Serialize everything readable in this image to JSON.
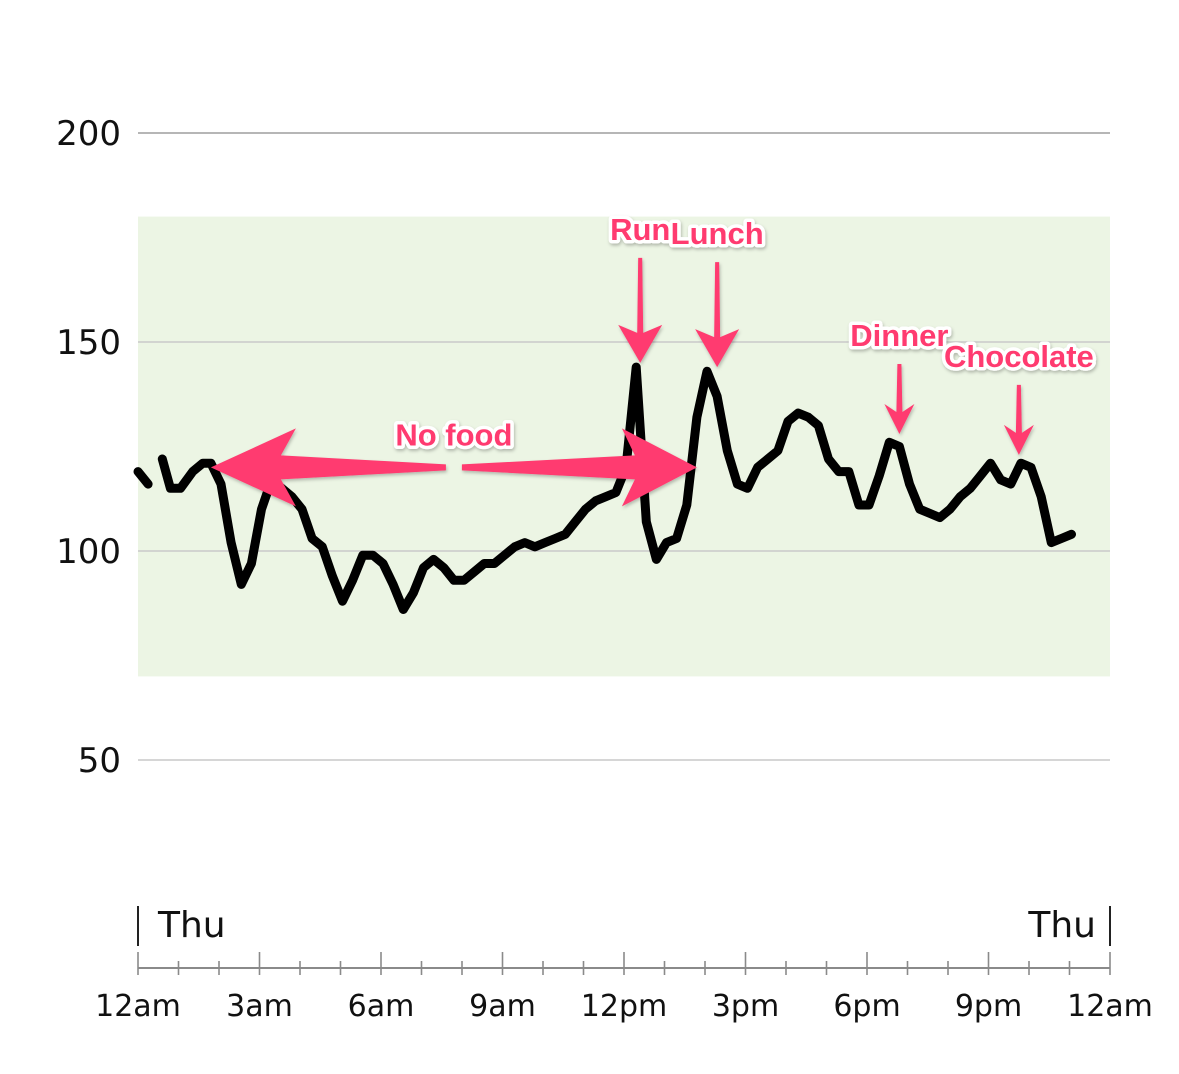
{
  "chart_data": {
    "type": "line",
    "title": "",
    "xlabel": "",
    "ylabel": "",
    "ylim": [
      0,
      220
    ],
    "xlim": [
      0,
      24
    ],
    "yticks": [
      50,
      100,
      150,
      200
    ],
    "y_tick_labels": [
      "50",
      "100",
      "150",
      "200"
    ],
    "x_major_ticks": [
      0,
      3,
      6,
      9,
      12,
      15,
      18,
      21,
      24
    ],
    "x_tick_labels": [
      "12am",
      "3am",
      "6am",
      "9am",
      "12pm",
      "3pm",
      "6pm",
      "9pm",
      "12am"
    ],
    "x_minor_step_hours": 1,
    "day_labels": [
      {
        "text": "Thu",
        "x": 0
      },
      {
        "text": "Thu",
        "x": 24
      }
    ],
    "target_range": {
      "low": 70,
      "high": 180
    },
    "grid": "horizontal",
    "legend": "none",
    "series": [
      {
        "name": "",
        "segments": [
          [
            [
              0.0,
              119
            ],
            [
              0.25,
              116
            ]
          ],
          [
            [
              0.6,
              122
            ],
            [
              0.8,
              115
            ],
            [
              1.05,
              115
            ],
            [
              1.35,
              119
            ],
            [
              1.6,
              121
            ],
            [
              1.8,
              121
            ],
            [
              2.05,
              116
            ],
            [
              2.3,
              102
            ],
            [
              2.55,
              92
            ],
            [
              2.8,
              97
            ],
            [
              3.05,
              110
            ],
            [
              3.3,
              117
            ],
            [
              3.55,
              115
            ],
            [
              3.8,
              113
            ],
            [
              4.05,
              110
            ],
            [
              4.3,
              103
            ],
            [
              4.55,
              101
            ],
            [
              4.8,
              94
            ],
            [
              5.05,
              88
            ],
            [
              5.3,
              93
            ],
            [
              5.55,
              99
            ],
            [
              5.8,
              99
            ],
            [
              6.05,
              97
            ],
            [
              6.3,
              92
            ],
            [
              6.55,
              86
            ],
            [
              6.8,
              90
            ],
            [
              7.05,
              96
            ],
            [
              7.3,
              98
            ],
            [
              7.55,
              96
            ],
            [
              7.8,
              93
            ],
            [
              8.05,
              93
            ],
            [
              8.3,
              95
            ],
            [
              8.55,
              97
            ],
            [
              8.8,
              97
            ],
            [
              9.05,
              99
            ],
            [
              9.3,
              101
            ],
            [
              9.55,
              102
            ],
            [
              9.8,
              101
            ],
            [
              10.05,
              102
            ],
            [
              10.3,
              103
            ],
            [
              10.55,
              104
            ],
            [
              10.8,
              107
            ],
            [
              11.05,
              110
            ],
            [
              11.3,
              112
            ],
            [
              11.55,
              113
            ],
            [
              11.8,
              114
            ],
            [
              12.05,
              120
            ],
            [
              12.3,
              144
            ],
            [
              12.55,
              107
            ],
            [
              12.8,
              98
            ],
            [
              13.05,
              102
            ],
            [
              13.3,
              103
            ],
            [
              13.55,
              111
            ],
            [
              13.8,
              132
            ],
            [
              14.05,
              143
            ],
            [
              14.3,
              137
            ],
            [
              14.55,
              124
            ],
            [
              14.8,
              116
            ],
            [
              15.05,
              115
            ],
            [
              15.3,
              120
            ],
            [
              15.55,
              122
            ],
            [
              15.8,
              124
            ],
            [
              16.05,
              131
            ],
            [
              16.3,
              133
            ],
            [
              16.55,
              132
            ],
            [
              16.8,
              130
            ],
            [
              17.05,
              122
            ],
            [
              17.3,
              119
            ],
            [
              17.55,
              119
            ],
            [
              17.8,
              111
            ],
            [
              18.05,
              111
            ],
            [
              18.3,
              118
            ],
            [
              18.55,
              126
            ],
            [
              18.8,
              125
            ],
            [
              19.05,
              116
            ],
            [
              19.3,
              110
            ],
            [
              19.55,
              109
            ],
            [
              19.8,
              108
            ],
            [
              20.05,
              110
            ],
            [
              20.3,
              113
            ],
            [
              20.55,
              115
            ],
            [
              20.8,
              118
            ],
            [
              21.05,
              121
            ],
            [
              21.3,
              117
            ],
            [
              21.55,
              116
            ],
            [
              21.8,
              121
            ],
            [
              22.05,
              120
            ],
            [
              22.3,
              113
            ],
            [
              22.55,
              102
            ],
            [
              22.8,
              103
            ],
            [
              23.05,
              104
            ]
          ]
        ]
      }
    ],
    "annotations": [
      {
        "text": "No food",
        "type": "double-arrow",
        "x_from": 1.8,
        "x_to": 13.8,
        "y": 120
      },
      {
        "text": "Run",
        "type": "down-arrow",
        "x": 12.4,
        "y": 145
      },
      {
        "text": "Lunch",
        "type": "down-arrow",
        "x": 14.3,
        "y": 144
      },
      {
        "text": "Dinner",
        "type": "down-arrow",
        "x": 18.8,
        "y": 128
      },
      {
        "text": "Chocolate",
        "type": "down-arrow",
        "x": 21.75,
        "y": 123
      }
    ],
    "colors": {
      "line": "#000000",
      "target_band": "#ecf5e4",
      "gridline": "#c9c9c9",
      "top_gridline": "#9e9e9e",
      "axis": "#8a8a8a",
      "annotation": "#ff3a6f"
    }
  }
}
